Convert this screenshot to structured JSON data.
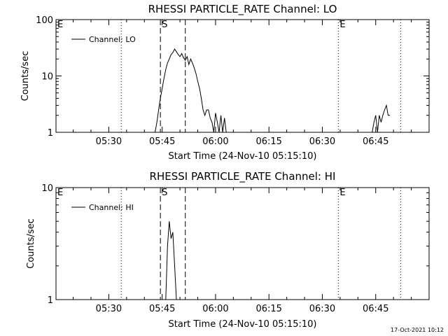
{
  "footer": {
    "timestamp": "17-Oct-2021 10:12"
  },
  "chart_data": [
    {
      "type": "line",
      "title": "RHESSI PARTICLE_RATE Channel: LO",
      "xlabel": "Start Time (24-Nov-10 05:15:10)",
      "ylabel": "Counts/sec",
      "yscale": "log",
      "xlim": [
        "05:15:10",
        "07:00:00"
      ],
      "ylim": [
        1,
        100
      ],
      "xticks": [
        "05:30",
        "05:45",
        "06:00",
        "06:15",
        "06:30",
        "06:45"
      ],
      "yticks": [
        "1",
        "10",
        "100"
      ],
      "legend": {
        "position": "top-left",
        "entries": [
          "Channel: LO"
        ]
      },
      "markers": [
        {
          "label": "E",
          "time": "05:15:10",
          "style": "dotted"
        },
        {
          "label": "",
          "time": "05:33:30",
          "style": "dotted"
        },
        {
          "label": "S",
          "time": "05:44:30",
          "style": "dashed"
        },
        {
          "label": "",
          "time": "05:51:30",
          "style": "dashed"
        },
        {
          "label": "E",
          "time": "06:34:30",
          "style": "dotted"
        },
        {
          "label": "",
          "time": "06:52:00",
          "style": "dotted"
        }
      ],
      "series": [
        {
          "name": "Channel: LO",
          "segments": [
            {
              "x": [
                "05:43:00",
                "05:43:30",
                "05:44:00",
                "05:44:30",
                "05:45:00",
                "05:45:30",
                "05:46:00",
                "05:46:30",
                "05:47:00",
                "05:47:30",
                "05:48:00",
                "05:48:30",
                "05:49:00",
                "05:49:30",
                "05:50:00",
                "05:50:30",
                "05:51:00",
                "05:51:30",
                "05:52:00",
                "05:52:30",
                "05:53:00",
                "05:53:30",
                "05:54:00",
                "05:54:30",
                "05:55:00",
                "05:55:30",
                "05:56:00",
                "05:56:30",
                "05:57:00",
                "05:57:30",
                "05:58:00",
                "05:58:30",
                "05:59:00",
                "05:59:30",
                "06:00:00",
                "06:00:30",
                "06:01:00",
                "06:01:30",
                "06:02:00",
                "06:02:30",
                "06:03:00",
                "06:03:30"
              ],
              "y": [
                1.0,
                1.5,
                2.5,
                4,
                6,
                9,
                13,
                17,
                20,
                24,
                26,
                30,
                27,
                24,
                22,
                25,
                21,
                19,
                22,
                16,
                20,
                17,
                14,
                11,
                8,
                6,
                4,
                2.5,
                2,
                2.5,
                2.5,
                1.8,
                1.5,
                1.0,
                2.2,
                1.5,
                1.0,
                2.0,
                1.0,
                1.8,
                1.0,
                1.0
              ]
            },
            {
              "x": [
                "06:44:00",
                "06:44:30",
                "06:45:00",
                "06:45:30",
                "06:46:00",
                "06:46:30",
                "06:47:00",
                "06:47:30",
                "06:48:00",
                "06:48:30",
                "06:49:00"
              ],
              "y": [
                1.0,
                1.5,
                2.0,
                1.0,
                2.0,
                1.5,
                2.0,
                2.5,
                3.0,
                2.0,
                2.0
              ]
            }
          ]
        }
      ]
    },
    {
      "type": "line",
      "title": "RHESSI PARTICLE_RATE Channel: HI",
      "xlabel": "Start Time (24-Nov-10 05:15:10)",
      "ylabel": "Counts/sec",
      "yscale": "log",
      "xlim": [
        "05:15:10",
        "07:00:00"
      ],
      "ylim": [
        1,
        10
      ],
      "xticks": [
        "05:30",
        "05:45",
        "06:00",
        "06:15",
        "06:30",
        "06:45"
      ],
      "yticks": [
        "1",
        "10"
      ],
      "legend": {
        "position": "top-left",
        "entries": [
          "Channel: HI"
        ]
      },
      "markers": [
        {
          "label": "E",
          "time": "05:15:10",
          "style": "dotted"
        },
        {
          "label": "",
          "time": "05:33:30",
          "style": "dotted"
        },
        {
          "label": "S",
          "time": "05:44:30",
          "style": "dashed"
        },
        {
          "label": "",
          "time": "05:51:30",
          "style": "dashed"
        },
        {
          "label": "E",
          "time": "06:34:30",
          "style": "dotted"
        },
        {
          "label": "",
          "time": "06:52:00",
          "style": "dotted"
        }
      ],
      "series": [
        {
          "name": "Channel: HI",
          "segments": [
            {
              "x": [
                "05:46:00",
                "05:46:30",
                "05:47:00",
                "05:47:30",
                "05:48:00",
                "05:48:30",
                "05:49:00"
              ],
              "y": [
                1.0,
                3.0,
                5.0,
                3.5,
                4.0,
                2.0,
                1.0
              ]
            }
          ]
        }
      ]
    }
  ]
}
